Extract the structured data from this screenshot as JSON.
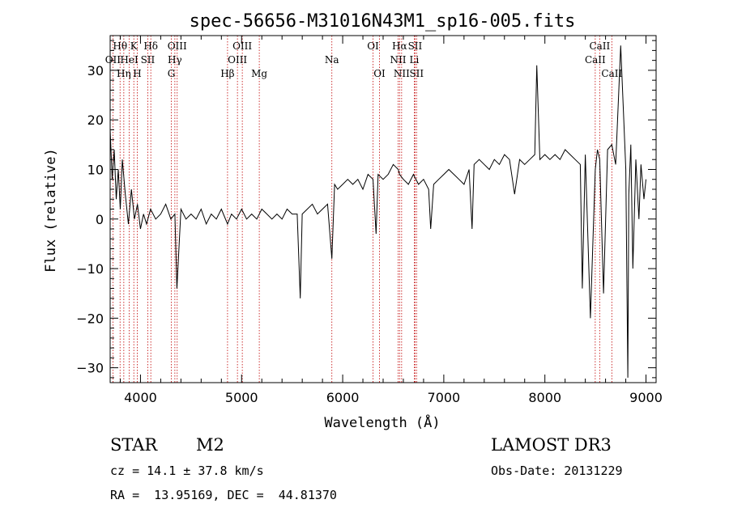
{
  "chart_data": {
    "type": "line",
    "title": "spec-56656-M31016N43M1_sp16-005.fits",
    "xlabel": "Wavelength (Å)",
    "ylabel": "Flux (relative)",
    "xlim": [
      3700,
      9100
    ],
    "ylim": [
      -33,
      37
    ],
    "xticks": [
      4000,
      5000,
      6000,
      7000,
      8000,
      9000
    ],
    "yticks": [
      -30,
      -20,
      -10,
      0,
      10,
      20,
      30
    ],
    "grid": false,
    "series": [
      {
        "x": [
          3700,
          3720,
          3740,
          3760,
          3780,
          3800,
          3820,
          3850,
          3880,
          3910,
          3940,
          3970,
          4000,
          4030,
          4060,
          4100,
          4150,
          4200,
          4250,
          4300,
          4340,
          4360,
          4400,
          4450,
          4500,
          4550,
          4600,
          4650,
          4700,
          4750,
          4800,
          4861,
          4900,
          4950,
          5000,
          5050,
          5100,
          5150,
          5200,
          5250,
          5300,
          5350,
          5400,
          5450,
          5500,
          5550,
          5580,
          5600,
          5650,
          5700,
          5750,
          5800,
          5850,
          5893,
          5920,
          5950,
          6000,
          6050,
          6100,
          6150,
          6200,
          6250,
          6300,
          6330,
          6350,
          6400,
          6450,
          6500,
          6550,
          6563,
          6600,
          6650,
          6700,
          6750,
          6800,
          6850,
          6870,
          6900,
          6950,
          7000,
          7050,
          7100,
          7150,
          7200,
          7250,
          7280,
          7300,
          7350,
          7400,
          7450,
          7500,
          7550,
          7600,
          7650,
          7700,
          7750,
          7800,
          7850,
          7900,
          7920,
          7950,
          8000,
          8050,
          8100,
          8150,
          8200,
          8250,
          8300,
          8350,
          8370,
          8400,
          8450,
          8498,
          8520,
          8542,
          8580,
          8620,
          8662,
          8700,
          8750,
          8780,
          8800,
          8820,
          8830,
          8850,
          8870,
          8900,
          8930,
          8950,
          8980,
          9000
        ],
        "y": [
          18,
          8,
          14,
          4,
          10,
          2,
          12,
          5,
          -1,
          6,
          0,
          3,
          -2,
          1,
          -1,
          2,
          0,
          1,
          3,
          0,
          1,
          -14,
          2,
          0,
          1,
          0,
          2,
          -1,
          1,
          0,
          2,
          -1,
          1,
          0,
          2,
          0,
          1,
          0,
          2,
          1,
          0,
          1,
          0,
          2,
          1,
          1,
          -16,
          1,
          2,
          3,
          1,
          2,
          3,
          -8,
          7,
          6,
          7,
          8,
          7,
          8,
          6,
          9,
          8,
          -3,
          9,
          8,
          9,
          11,
          10,
          9,
          8,
          7,
          9,
          7,
          8,
          6,
          -2,
          7,
          8,
          9,
          10,
          9,
          8,
          7,
          10,
          -2,
          11,
          12,
          11,
          10,
          12,
          11,
          13,
          12,
          5,
          12,
          11,
          12,
          13,
          31,
          12,
          13,
          12,
          13,
          12,
          14,
          13,
          12,
          11,
          -14,
          13,
          -20,
          10,
          14,
          12,
          -15,
          14,
          15,
          11,
          35,
          20,
          10,
          -32,
          5,
          15,
          -10,
          12,
          0,
          11,
          4,
          8
        ]
      }
    ],
    "lines": [
      {
        "label": "Hθ",
        "x": 3798,
        "row": 1
      },
      {
        "label": "OII",
        "x": 3727,
        "row": 2
      },
      {
        "label": "Hη",
        "x": 3835,
        "row": 3
      },
      {
        "label": "K",
        "x": 3934,
        "row": 1
      },
      {
        "label": "HeI",
        "x": 3889,
        "row": 2
      },
      {
        "label": "H",
        "x": 3968,
        "row": 3
      },
      {
        "label": "Hδ",
        "x": 4102,
        "row": 1
      },
      {
        "label": "SII",
        "x": 4072,
        "row": 2
      },
      {
        "label": "OIII",
        "x": 4363,
        "row": 1
      },
      {
        "label": "Hγ",
        "x": 4340,
        "row": 2
      },
      {
        "label": "G",
        "x": 4305,
        "row": 3
      },
      {
        "label": "OIII",
        "x": 5007,
        "row": 1
      },
      {
        "label": "OIII",
        "x": 4959,
        "row": 2
      },
      {
        "label": "Hβ",
        "x": 4861,
        "row": 3
      },
      {
        "label": "Mg",
        "x": 5175,
        "row": 3
      },
      {
        "label": "Na",
        "x": 5893,
        "row": 2
      },
      {
        "label": "OI",
        "x": 6300,
        "row": 1
      },
      {
        "label": "OI",
        "x": 6364,
        "row": 3
      },
      {
        "label": "Hα",
        "x": 6563,
        "row": 1
      },
      {
        "label": "SII",
        "x": 6716,
        "row": 1
      },
      {
        "label": "NII",
        "x": 6548,
        "row": 2
      },
      {
        "label": "Li",
        "x": 6708,
        "row": 2
      },
      {
        "label": "NII",
        "x": 6583,
        "row": 3
      },
      {
        "label": "SII",
        "x": 6731,
        "row": 3
      },
      {
        "label": "CaII",
        "x": 8542,
        "row": 1
      },
      {
        "label": "CaII",
        "x": 8498,
        "row": 2
      },
      {
        "label": "CaII",
        "x": 8662,
        "row": 3
      }
    ]
  },
  "info": {
    "class": "STAR",
    "subclass": "M2",
    "survey": "LAMOST DR3",
    "cz": "cz = 14.1 ± 37.8 km/s",
    "obsdate": "Obs-Date: 20131229",
    "radec": "RA =  13.95169, DEC =  44.81370"
  }
}
